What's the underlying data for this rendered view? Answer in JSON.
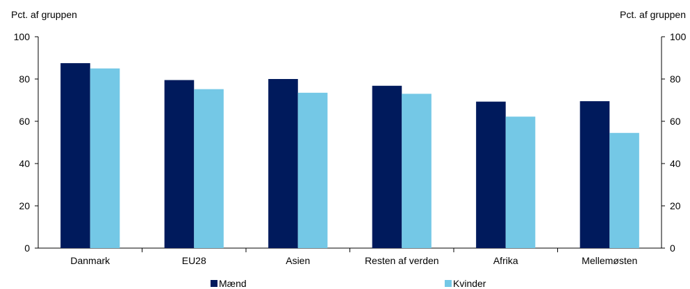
{
  "chart_data": {
    "type": "bar",
    "left_axis_unit": "Pct. af gruppen",
    "right_axis_unit": "Pct. af gruppen",
    "categories": [
      "Danmark",
      "EU28",
      "Asien",
      "Resten af verden",
      "Afrika",
      "Mellemøsten"
    ],
    "series": [
      {
        "name": "Mænd",
        "color": "#001a5c",
        "values": [
          87.5,
          79.5,
          80,
          76.8,
          69.3,
          69.5
        ]
      },
      {
        "name": "Kvinder",
        "color": "#74c8e6",
        "values": [
          85,
          75.2,
          73.5,
          73,
          62.2,
          54.5
        ]
      }
    ],
    "ylim": [
      0,
      100
    ],
    "yticks": [
      0,
      20,
      40,
      60,
      80,
      100
    ],
    "grid": false,
    "legend_position": "bottom"
  }
}
